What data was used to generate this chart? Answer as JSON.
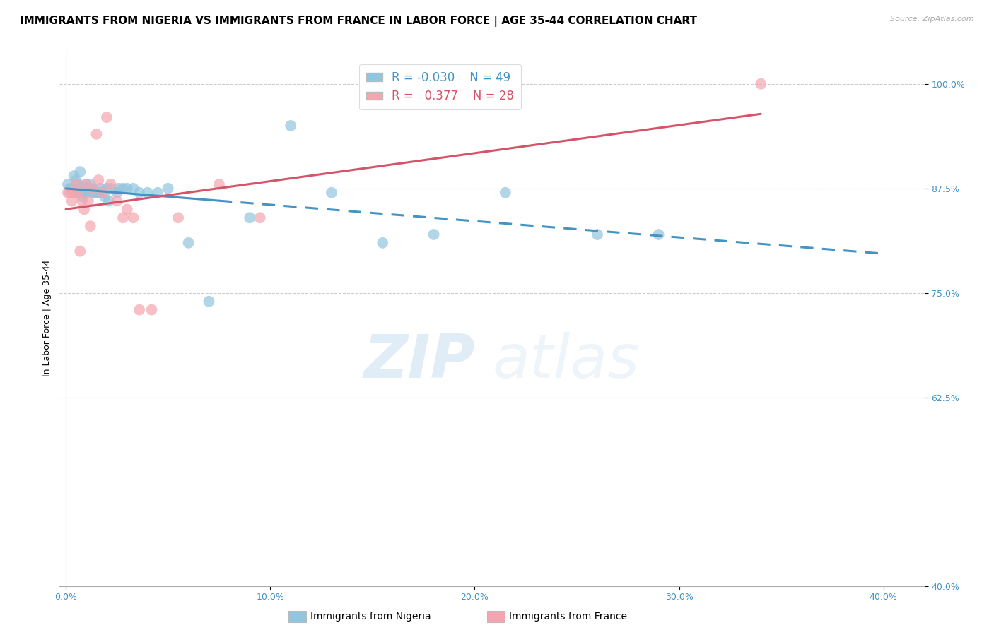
{
  "title": "IMMIGRANTS FROM NIGERIA VS IMMIGRANTS FROM FRANCE IN LABOR FORCE | AGE 35-44 CORRELATION CHART",
  "source": "Source: ZipAtlas.com",
  "ylabel": "In Labor Force | Age 35-44",
  "xlim": [
    -0.003,
    0.42
  ],
  "ylim": [
    0.4,
    1.04
  ],
  "yticks": [
    0.4,
    0.625,
    0.75,
    0.875,
    1.0
  ],
  "ytick_labels": [
    "40.0%",
    "62.5%",
    "75.0%",
    "87.5%",
    "100.0%"
  ],
  "xticks": [
    0.0,
    0.1,
    0.2,
    0.3,
    0.4
  ],
  "xtick_labels": [
    "0.0%",
    "10.0%",
    "20.0%",
    "30.0%",
    "40.0%"
  ],
  "legend_r_nigeria": "-0.030",
  "legend_n_nigeria": "49",
  "legend_r_france": "0.377",
  "legend_n_france": "28",
  "nigeria_color": "#92c5de",
  "france_color": "#f4a6b0",
  "nigeria_line_color": "#4393c3",
  "france_line_color": "#d6546a",
  "nigeria_scatter_x": [
    0.001,
    0.002,
    0.003,
    0.004,
    0.005,
    0.005,
    0.006,
    0.007,
    0.007,
    0.008,
    0.008,
    0.009,
    0.009,
    0.01,
    0.01,
    0.011,
    0.011,
    0.012,
    0.012,
    0.013,
    0.013,
    0.014,
    0.015,
    0.016,
    0.017,
    0.018,
    0.019,
    0.02,
    0.021,
    0.022,
    0.025,
    0.026,
    0.028,
    0.03,
    0.033,
    0.036,
    0.04,
    0.045,
    0.05,
    0.06,
    0.07,
    0.09,
    0.11,
    0.13,
    0.155,
    0.18,
    0.215,
    0.26,
    0.29
  ],
  "nigeria_scatter_y": [
    0.88,
    0.875,
    0.875,
    0.89,
    0.885,
    0.87,
    0.88,
    0.875,
    0.895,
    0.875,
    0.865,
    0.875,
    0.87,
    0.88,
    0.87,
    0.875,
    0.875,
    0.88,
    0.875,
    0.875,
    0.87,
    0.87,
    0.87,
    0.87,
    0.875,
    0.87,
    0.865,
    0.875,
    0.86,
    0.875,
    0.87,
    0.875,
    0.875,
    0.875,
    0.875,
    0.87,
    0.87,
    0.87,
    0.875,
    0.81,
    0.74,
    0.84,
    0.95,
    0.87,
    0.81,
    0.82,
    0.87,
    0.82,
    0.82
  ],
  "france_scatter_x": [
    0.001,
    0.002,
    0.003,
    0.004,
    0.005,
    0.006,
    0.007,
    0.008,
    0.009,
    0.01,
    0.011,
    0.012,
    0.013,
    0.015,
    0.016,
    0.018,
    0.02,
    0.022,
    0.025,
    0.028,
    0.03,
    0.033,
    0.036,
    0.042,
    0.055,
    0.075,
    0.095,
    0.34
  ],
  "france_scatter_y": [
    0.87,
    0.87,
    0.86,
    0.87,
    0.88,
    0.87,
    0.8,
    0.86,
    0.85,
    0.88,
    0.86,
    0.83,
    0.875,
    0.94,
    0.885,
    0.87,
    0.96,
    0.88,
    0.86,
    0.84,
    0.85,
    0.84,
    0.73,
    0.73,
    0.84,
    0.88,
    0.84,
    1.0
  ],
  "watermark_zip": "ZIP",
  "watermark_atlas": "atlas",
  "title_fontsize": 11,
  "axis_label_fontsize": 9,
  "tick_fontsize": 9,
  "legend_fontsize": 11
}
